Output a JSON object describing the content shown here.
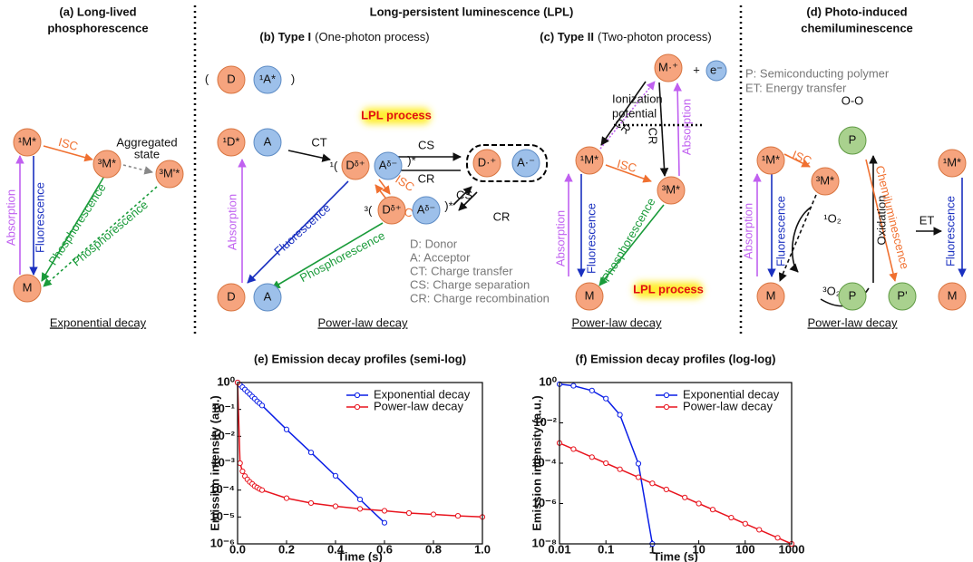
{
  "header": "Long-persistent luminescence (LPL)",
  "panels": [
    {
      "title": [
        "(a) Long-lived",
        "phosphorescence"
      ],
      "labels": [
        "¹M*",
        "ISC",
        "³M*",
        "Aggregated",
        "state",
        "³M'*",
        "Absorption",
        "Fluorescence",
        "Phosphorescence",
        "Phosphorescence",
        "M"
      ],
      "caption": "Exponential decay"
    },
    {
      "title": [
        "(b) Type I",
        "(One-photon process)"
      ],
      "labels": [
        "(",
        "D",
        "¹A*",
        ")",
        "¹D*",
        "A",
        "CT",
        "LPL process",
        "¹(",
        "Dᵟ⁺",
        "Aᵟ⁻",
        ")*",
        "CS",
        "CR",
        "D·⁺",
        "A·⁻",
        "CS",
        "CR",
        "ISC",
        "RISC",
        "³(",
        "Dᵟ⁺",
        "Aᵟ⁻",
        ")*",
        "Absorption",
        "Fluorescence",
        "Phosphorescence",
        "D",
        "A"
      ],
      "legend": [
        "D: Donor",
        "A: Acceptor",
        "CT: Charge transfer",
        "CS: Charge separation",
        "CR: Charge recombination"
      ],
      "caption": "Power-law decay"
    },
    {
      "title": [
        "(c) Type II",
        "(Two-photon process)"
      ],
      "labels": [
        "M·⁺",
        "+",
        "e⁻",
        "Ionization",
        "potential",
        "CR",
        "CR",
        "Absorption",
        "¹M*",
        "ISC",
        "³M*",
        "Absorption",
        "Fluorescence",
        "Phosphorescence",
        "M",
        "LPL process"
      ],
      "caption": "Power-law decay"
    },
    {
      "title": [
        "(d) Photo-induced",
        "chemiluminescence"
      ],
      "legend": [
        "P: Semiconducting polymer",
        "ET: Energy transfer"
      ],
      "labels": [
        "O-O",
        "P",
        "¹M*",
        "ISC",
        "³M*",
        "¹O₂",
        "Oxidation",
        "Chemiluminescence",
        "ET",
        "¹M*",
        "Absorption",
        "Fluorescence",
        "Fluorescence",
        "M",
        "³O₂",
        "P",
        "P'",
        "M"
      ],
      "caption": "Power-law decay"
    }
  ],
  "chart_data": [
    {
      "type": "line",
      "title": "(e) Emission decay profiles (semi-log)",
      "xlabel": "Time (s)",
      "ylabel": "Emission intensity (a.u.)",
      "xlog": false,
      "ylog": true,
      "legend": "upper right",
      "marker": "open-circle",
      "x": [
        0,
        0.01,
        0.02,
        0.03,
        0.04,
        0.05,
        0.06,
        0.07,
        0.08,
        0.09,
        0.1,
        0.2,
        0.3,
        0.4,
        0.5,
        0.6,
        0.7,
        0.8,
        0.9,
        1.0
      ],
      "series": [
        {
          "name": "Exponential decay",
          "color": "#0a1ee6",
          "values": [
            1,
            0.82,
            0.67,
            0.55,
            0.45,
            0.37,
            0.3,
            0.25,
            0.2,
            0.17,
            0.14,
            0.018,
            0.0025,
            0.00034,
            4.5e-05,
            6.1e-06,
            null,
            null,
            null,
            null
          ]
        },
        {
          "name": "Power-law decay",
          "color": "#e8141e",
          "values": [
            1,
            0.001,
            0.0005,
            0.00033,
            0.00025,
            0.0002,
            0.00017,
            0.00014,
            0.000125,
            0.00011,
            0.0001,
            5e-05,
            3.3e-05,
            2.5e-05,
            2e-05,
            1.7e-05,
            1.4e-05,
            1.25e-05,
            1.1e-05,
            1e-05
          ]
        }
      ],
      "xlim": [
        0,
        1
      ],
      "ylim": [
        1e-06,
        1
      ],
      "xticks": [
        {
          "value": 0,
          "label": "0.0"
        },
        0.2,
        0.4,
        0.6,
        0.8,
        {
          "value": 1,
          "label": "1.0"
        }
      ],
      "yticks": [
        {
          "value": 1,
          "label": "10⁰"
        },
        {
          "value": 0.1,
          "label": "10⁻¹"
        },
        {
          "value": 0.01,
          "label": "10⁻²"
        },
        {
          "value": 0.001,
          "label": "10⁻³"
        },
        {
          "value": 0.0001,
          "label": "10⁻⁴"
        },
        {
          "value": 1e-05,
          "label": "10⁻⁵"
        },
        {
          "value": 1e-06,
          "label": "10⁻⁶"
        }
      ]
    },
    {
      "type": "line",
      "title": "(f) Emission decay profiles (log-log)",
      "xlabel": "Time (s)",
      "ylabel": "Emission intensity (a.u.)",
      "xlog": true,
      "ylog": true,
      "legend": "upper right",
      "marker": "open-circle",
      "x": [
        0.01,
        0.02,
        0.05,
        0.1,
        0.2,
        0.5,
        1,
        2,
        5,
        10,
        20,
        50,
        100,
        200,
        500,
        1000
      ],
      "series": [
        {
          "name": "Exponential decay",
          "color": "#0a1ee6",
          "values": [
            0.83,
            0.69,
            0.4,
            0.16,
            0.025,
            9.5e-05,
            1e-08,
            null,
            null,
            null,
            null,
            null,
            null,
            null,
            null,
            null
          ]
        },
        {
          "name": "Power-law decay",
          "color": "#e8141e",
          "values": [
            0.001,
            0.0005,
            0.0002,
            0.0001,
            5e-05,
            2e-05,
            1e-05,
            5e-06,
            2e-06,
            1e-06,
            5e-07,
            2e-07,
            1e-07,
            5e-08,
            2e-08,
            1e-08
          ]
        }
      ],
      "xlim": [
        0.01,
        1000
      ],
      "ylim": [
        1e-08,
        1
      ],
      "xticks": [
        0.01,
        0.1,
        1,
        10,
        100,
        1000
      ],
      "yticks": [
        {
          "value": 1,
          "label": "10⁰"
        },
        {
          "value": 0.01,
          "label": "10⁻²"
        },
        {
          "value": 0.0001,
          "label": "10⁻⁴"
        },
        {
          "value": 1e-06,
          "label": "10⁻⁶"
        },
        {
          "value": 1e-08,
          "label": "10⁻⁸"
        }
      ]
    }
  ]
}
